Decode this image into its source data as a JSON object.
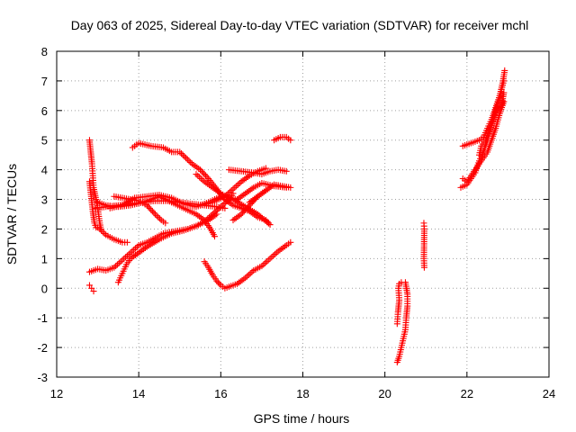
{
  "chart_data": {
    "type": "scatter",
    "title": "Day 063 of 2025, Sidereal Day-to-day VTEC variation (SDTVAR) for receiver mchl",
    "xlabel": "GPS time / hours",
    "ylabel": "SDTVAR / TECUs",
    "xlim": [
      12,
      24
    ],
    "ylim": [
      -3,
      8
    ],
    "xticks": [
      "12",
      "14",
      "16",
      "18",
      "20",
      "22",
      "24"
    ],
    "yticks": [
      "-3",
      "-2",
      "-1",
      "0",
      "1",
      "2",
      "3",
      "4",
      "5",
      "6",
      "7",
      "8"
    ],
    "grid": true,
    "marker": "plus",
    "color": "#ff0000",
    "series": [
      {
        "points": [
          [
            12.8,
            5.0
          ],
          [
            12.83,
            4.6
          ],
          [
            12.86,
            4.2
          ],
          [
            12.88,
            3.8
          ],
          [
            12.9,
            3.4
          ],
          [
            12.93,
            3.2
          ],
          [
            12.96,
            3.0
          ],
          [
            12.99,
            2.8
          ],
          [
            13.02,
            2.5
          ],
          [
            13.05,
            2.2
          ],
          [
            13.08,
            2.0
          ]
        ]
      },
      {
        "points": [
          [
            12.8,
            3.6
          ],
          [
            12.84,
            3.1
          ],
          [
            12.88,
            2.6
          ],
          [
            12.92,
            2.2
          ],
          [
            12.96,
            2.05
          ],
          [
            13.0,
            2.05
          ]
        ]
      },
      {
        "points": [
          [
            12.95,
            2.7
          ],
          [
            13.2,
            2.75
          ],
          [
            13.5,
            2.8
          ],
          [
            13.8,
            2.85
          ],
          [
            14.1,
            2.9
          ],
          [
            14.4,
            2.95
          ],
          [
            14.7,
            2.95
          ],
          [
            15.0,
            2.9
          ],
          [
            15.3,
            2.85
          ],
          [
            15.6,
            2.8
          ],
          [
            15.9,
            2.75
          ],
          [
            16.1,
            2.7
          ]
        ]
      },
      {
        "points": [
          [
            13.0,
            2.9
          ],
          [
            13.2,
            2.8
          ],
          [
            13.5,
            2.75
          ],
          [
            13.8,
            2.8
          ],
          [
            14.1,
            2.9
          ],
          [
            14.3,
            3.0
          ],
          [
            14.5,
            3.1
          ],
          [
            14.8,
            2.9
          ],
          [
            15.1,
            2.7
          ],
          [
            15.4,
            2.5
          ],
          [
            15.6,
            2.3
          ],
          [
            15.75,
            2.0
          ],
          [
            15.85,
            1.75
          ]
        ]
      },
      {
        "points": [
          [
            13.05,
            2.0
          ],
          [
            13.2,
            1.8
          ],
          [
            13.4,
            1.65
          ],
          [
            13.6,
            1.55
          ],
          [
            13.72,
            1.55
          ]
        ]
      },
      {
        "points": [
          [
            13.4,
            3.1
          ],
          [
            13.6,
            3.05
          ],
          [
            13.8,
            3.0
          ],
          [
            14.0,
            2.95
          ],
          [
            14.2,
            2.8
          ],
          [
            14.4,
            2.5
          ],
          [
            14.55,
            2.3
          ],
          [
            14.65,
            2.2
          ]
        ]
      },
      {
        "points": [
          [
            13.3,
            2.7
          ],
          [
            13.6,
            2.8
          ],
          [
            13.9,
            3.05
          ],
          [
            14.2,
            3.1
          ],
          [
            14.5,
            3.15
          ],
          [
            14.8,
            3.05
          ],
          [
            15.1,
            2.85
          ],
          [
            15.4,
            2.75
          ],
          [
            15.7,
            2.9
          ],
          [
            16.0,
            3.1
          ],
          [
            16.3,
            3.0
          ],
          [
            16.6,
            2.75
          ],
          [
            16.9,
            2.5
          ],
          [
            17.2,
            2.15
          ]
        ]
      },
      {
        "points": [
          [
            13.85,
            4.75
          ],
          [
            14.0,
            4.9
          ],
          [
            14.3,
            4.8
          ],
          [
            14.6,
            4.75
          ],
          [
            14.8,
            4.6
          ],
          [
            15.0,
            4.6
          ],
          [
            15.15,
            4.4
          ],
          [
            15.3,
            4.2
          ],
          [
            15.5,
            4.0
          ],
          [
            15.7,
            3.7
          ],
          [
            15.9,
            3.35
          ],
          [
            16.1,
            3.0
          ],
          [
            16.3,
            2.8
          ],
          [
            16.5,
            2.7
          ],
          [
            16.7,
            2.6
          ],
          [
            16.9,
            2.4
          ],
          [
            17.1,
            2.3
          ],
          [
            17.2,
            2.15
          ]
        ]
      },
      {
        "points": [
          [
            15.4,
            3.85
          ],
          [
            15.6,
            3.6
          ],
          [
            15.8,
            3.4
          ],
          [
            16.0,
            3.2
          ],
          [
            16.2,
            3.05
          ],
          [
            16.4,
            3.0
          ],
          [
            16.6,
            3.2
          ],
          [
            16.8,
            3.4
          ],
          [
            17.0,
            3.55
          ],
          [
            17.3,
            3.45
          ],
          [
            17.6,
            3.4
          ]
        ]
      },
      {
        "points": [
          [
            16.2,
            4.0
          ],
          [
            16.5,
            3.95
          ],
          [
            16.8,
            3.9
          ],
          [
            17.0,
            3.85
          ],
          [
            17.2,
            3.95
          ],
          [
            17.4,
            4.0
          ],
          [
            17.6,
            3.95
          ]
        ]
      },
      {
        "points": [
          [
            16.7,
            2.9
          ],
          [
            16.9,
            3.1
          ],
          [
            17.1,
            3.3
          ],
          [
            17.3,
            3.5
          ],
          [
            17.5,
            3.45
          ],
          [
            17.7,
            3.4
          ]
        ]
      },
      {
        "points": [
          [
            15.5,
            2.8
          ],
          [
            15.8,
            2.9
          ],
          [
            16.1,
            3.1
          ],
          [
            16.3,
            3.35
          ],
          [
            16.5,
            3.6
          ],
          [
            16.7,
            3.8
          ],
          [
            16.9,
            3.95
          ],
          [
            17.1,
            4.05
          ]
        ]
      },
      {
        "points": [
          [
            17.3,
            5.0
          ],
          [
            17.45,
            5.1
          ],
          [
            17.6,
            5.1
          ],
          [
            17.7,
            5.0
          ]
        ]
      },
      {
        "points": [
          [
            16.3,
            2.3
          ],
          [
            16.5,
            2.5
          ],
          [
            16.7,
            2.8
          ],
          [
            16.9,
            3.1
          ],
          [
            17.1,
            3.3
          ]
        ]
      },
      {
        "points": [
          [
            12.8,
            0.55
          ],
          [
            13.0,
            0.65
          ],
          [
            13.2,
            0.6
          ],
          [
            13.4,
            0.7
          ],
          [
            13.6,
            0.95
          ],
          [
            13.8,
            1.2
          ],
          [
            14.0,
            1.45
          ],
          [
            14.2,
            1.55
          ],
          [
            14.4,
            1.7
          ],
          [
            14.6,
            1.85
          ],
          [
            14.8,
            1.9
          ],
          [
            15.0,
            1.95
          ],
          [
            15.2,
            2.0
          ],
          [
            15.4,
            2.1
          ],
          [
            15.6,
            2.25
          ],
          [
            15.8,
            2.5
          ],
          [
            16.0,
            2.75
          ],
          [
            16.2,
            3.0
          ],
          [
            16.3,
            3.2
          ]
        ]
      },
      {
        "points": [
          [
            13.5,
            0.2
          ],
          [
            13.6,
            0.5
          ],
          [
            13.7,
            0.8
          ],
          [
            13.8,
            1.0
          ],
          [
            14.0,
            1.2
          ],
          [
            14.2,
            1.4
          ],
          [
            14.5,
            1.65
          ],
          [
            14.8,
            1.85
          ],
          [
            15.1,
            1.95
          ],
          [
            15.4,
            2.1
          ],
          [
            15.7,
            2.3
          ],
          [
            15.9,
            2.5
          ]
        ]
      },
      {
        "points": [
          [
            12.8,
            0.1
          ],
          [
            12.85,
            0.0
          ],
          [
            12.9,
            -0.1
          ]
        ]
      },
      {
        "points": [
          [
            15.6,
            0.9
          ],
          [
            15.7,
            0.7
          ],
          [
            15.8,
            0.45
          ],
          [
            15.9,
            0.25
          ],
          [
            16.0,
            0.1
          ],
          [
            16.1,
            0.0
          ],
          [
            16.2,
            0.05
          ],
          [
            16.4,
            0.15
          ],
          [
            16.6,
            0.35
          ],
          [
            16.8,
            0.6
          ],
          [
            17.0,
            0.75
          ],
          [
            17.2,
            1.0
          ],
          [
            17.4,
            1.25
          ],
          [
            17.6,
            1.45
          ],
          [
            17.7,
            1.55
          ]
        ]
      },
      {
        "points": [
          [
            20.3,
            -2.5
          ],
          [
            20.35,
            -2.3
          ],
          [
            20.4,
            -2.0
          ],
          [
            20.45,
            -1.7
          ],
          [
            20.5,
            -1.4
          ],
          [
            20.52,
            -1.0
          ],
          [
            20.55,
            -0.6
          ],
          [
            20.55,
            -0.2
          ],
          [
            20.5,
            0.2
          ]
        ]
      },
      {
        "points": [
          [
            20.3,
            -1.2
          ],
          [
            20.32,
            -0.8
          ],
          [
            20.35,
            -0.4
          ],
          [
            20.33,
            0.0
          ],
          [
            20.35,
            0.15
          ],
          [
            20.4,
            0.2
          ]
        ]
      },
      {
        "points": [
          [
            20.95,
            2.2
          ],
          [
            20.96,
            2.0
          ],
          [
            20.95,
            1.0
          ],
          [
            20.96,
            0.7
          ]
        ]
      },
      {
        "points": [
          [
            21.85,
            3.4
          ],
          [
            22.0,
            3.5
          ],
          [
            22.1,
            3.7
          ],
          [
            22.2,
            3.9
          ],
          [
            22.3,
            4.3
          ],
          [
            22.4,
            4.6
          ],
          [
            22.5,
            5.0
          ],
          [
            22.6,
            5.5
          ],
          [
            22.7,
            6.0
          ],
          [
            22.8,
            6.5
          ],
          [
            22.88,
            7.0
          ],
          [
            22.92,
            7.35
          ]
        ]
      },
      {
        "points": [
          [
            21.9,
            3.7
          ],
          [
            22.0,
            3.6
          ],
          [
            22.1,
            3.8
          ],
          [
            22.2,
            4.0
          ],
          [
            22.3,
            4.2
          ],
          [
            22.4,
            4.4
          ],
          [
            22.5,
            4.6
          ],
          [
            22.6,
            5.0
          ],
          [
            22.7,
            5.4
          ],
          [
            22.8,
            5.9
          ],
          [
            22.9,
            6.3
          ]
        ]
      },
      {
        "points": [
          [
            21.9,
            4.8
          ],
          [
            22.1,
            4.9
          ],
          [
            22.3,
            5.0
          ],
          [
            22.4,
            5.1
          ],
          [
            22.5,
            5.4
          ],
          [
            22.6,
            5.7
          ],
          [
            22.7,
            6.1
          ],
          [
            22.8,
            6.5
          ],
          [
            22.9,
            7.0
          ]
        ]
      },
      {
        "points": [
          [
            22.3,
            4.5
          ],
          [
            22.35,
            4.8
          ],
          [
            22.45,
            5.0
          ],
          [
            22.55,
            5.3
          ],
          [
            22.65,
            5.7
          ],
          [
            22.75,
            6.0
          ],
          [
            22.85,
            6.2
          ],
          [
            22.9,
            6.6
          ]
        ]
      }
    ]
  }
}
